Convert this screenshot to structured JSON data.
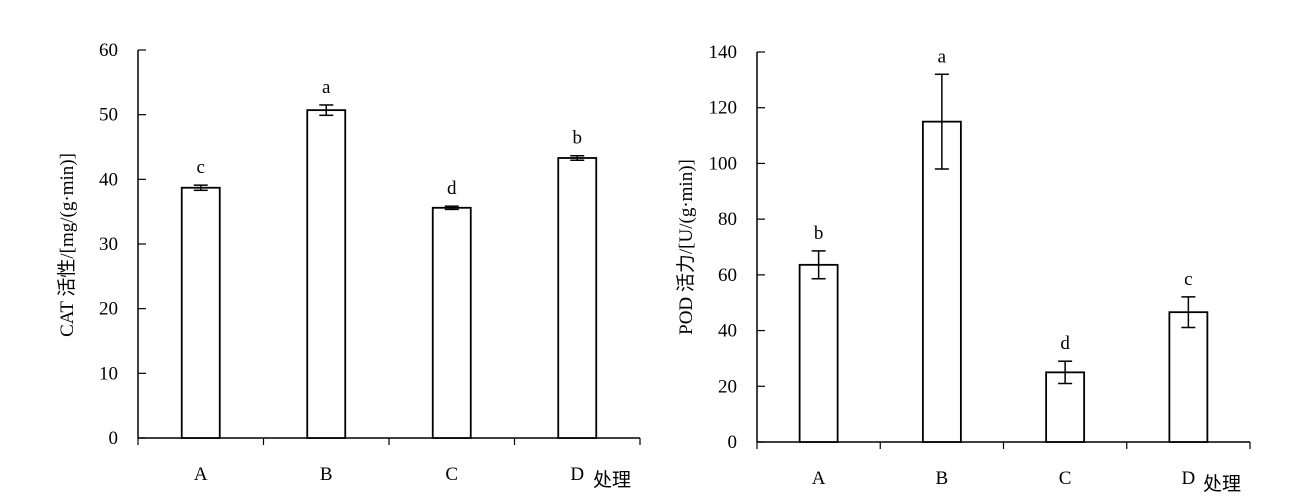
{
  "chart_data": [
    {
      "type": "bar",
      "categories": [
        "A",
        "B",
        "C",
        "D"
      ],
      "values": [
        38.7,
        50.7,
        35.6,
        43.3
      ],
      "errors": [
        0.4,
        0.8,
        0.25,
        0.35
      ],
      "significance": [
        "c",
        "a",
        "d",
        "b"
      ],
      "ylabel": "CAT 活性/[mg/(g·min)]",
      "xlabel": "处理",
      "ylim": [
        0,
        60
      ],
      "yticks": [
        0,
        10,
        20,
        30,
        40,
        50,
        60
      ],
      "grid": false
    },
    {
      "type": "bar",
      "categories": [
        "A",
        "B",
        "C",
        "D"
      ],
      "values": [
        63.6,
        115.0,
        25.0,
        46.6
      ],
      "errors": [
        5.0,
        17.0,
        4.0,
        5.5
      ],
      "significance": [
        "b",
        "a",
        "d",
        "c"
      ],
      "ylabel": "POD 活力/[U/(g·min)]",
      "xlabel": "处理",
      "ylim": [
        0,
        140
      ],
      "yticks": [
        0,
        20,
        40,
        60,
        80,
        100,
        120,
        140
      ],
      "grid": false
    }
  ]
}
